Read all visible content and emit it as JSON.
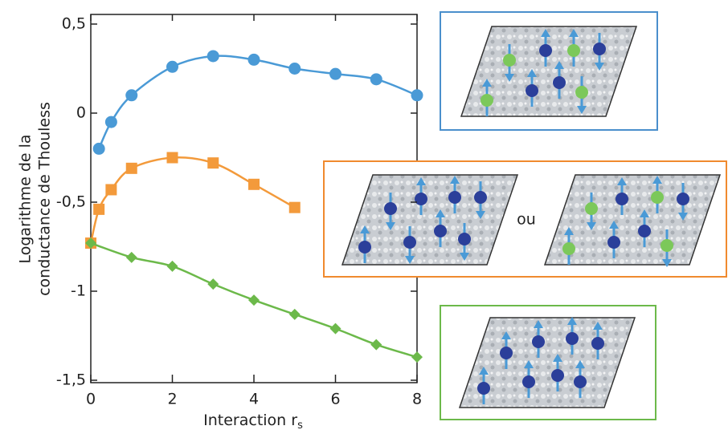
{
  "chart_data": {
    "type": "scatter",
    "xlabel": "Interaction r",
    "xlabel_subscript": "s",
    "ylabel": [
      "Logarithme de la",
      "conductance de Thouless"
    ],
    "xlim": [
      0,
      8
    ],
    "xticks": [
      0,
      2,
      4,
      6,
      8
    ],
    "ylim": [
      -1.5,
      0.5
    ],
    "yticks": [
      {
        "value": -1.5,
        "label": "-1,5"
      },
      -1,
      {
        "value": -0.5,
        "label": "-0,5"
      },
      0,
      {
        "value": 0.5,
        "label": "0,5"
      }
    ],
    "series": [
      {
        "color": "#4a9ad6",
        "marker": "circle",
        "x": [
          0.2,
          0.5,
          1,
          2,
          3,
          4,
          5,
          6,
          7,
          8
        ],
        "values": [
          -0.2,
          -0.05,
          0.1,
          0.26,
          0.32,
          0.3,
          0.25,
          0.22,
          0.19,
          0.1
        ]
      },
      {
        "color": "#f39a3b",
        "marker": "square",
        "x": [
          0,
          0.2,
          0.5,
          1,
          2,
          3,
          4,
          5
        ],
        "values": [
          -0.73,
          -0.54,
          -0.43,
          -0.31,
          -0.25,
          -0.28,
          -0.4,
          -0.53
        ]
      },
      {
        "color": "#6cb94a",
        "marker": "diamond",
        "x": [
          0,
          1,
          2,
          3,
          4,
          5,
          6,
          7,
          8
        ],
        "values": [
          -0.73,
          -0.81,
          -0.86,
          -0.96,
          -1.05,
          -1.13,
          -1.21,
          -1.3,
          -1.37
        ]
      }
    ],
    "inset_or_label": "ou"
  }
}
